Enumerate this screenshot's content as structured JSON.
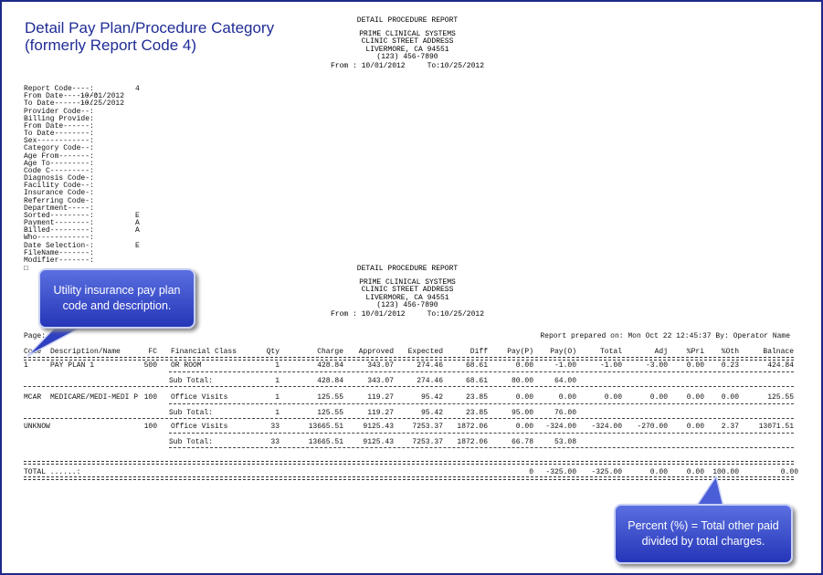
{
  "title": [
    "Detail Pay Plan/Procedure Category",
    "(formerly Report Code 4)"
  ],
  "header": [
    "DETAIL PROCEDURE REPORT",
    "PRIME CLINICAL SYSTEMS",
    "CLINIC STREET ADDRESS",
    "LIVERMORE, CA 94551",
    "(123) 456-7890",
    "From : 10/01/2012     To:10/25/2012"
  ],
  "parameters": [
    {
      "label": "Report Code----:",
      "value": "4"
    },
    {
      "label": "From Date-------:",
      "value": "10/01/2012"
    },
    {
      "label": "To Date--------:",
      "value": "10/25/2012"
    },
    {
      "label": "Provider Code--:"
    },
    {
      "label": "Billing Provide:"
    },
    {
      "label": "From Date------:"
    },
    {
      "label": "To Date--------:"
    },
    {
      "label": "Sex------------:"
    },
    {
      "label": "Category Code--:"
    },
    {
      "label": "Age From-------:"
    },
    {
      "label": "Age To---------:"
    },
    {
      "label": "Code C---------:"
    },
    {
      "label": "Diagnosis Code-:"
    },
    {
      "label": "Facility Code--:"
    },
    {
      "label": "Insurance Code-:"
    },
    {
      "label": "Referring Code-:"
    },
    {
      "label": "Department-----:"
    },
    {
      "label": "Sorted---------:",
      "value": "E"
    },
    {
      "label": "Payment--------:",
      "value": "A"
    },
    {
      "label": "Billed---------:",
      "value": "A"
    },
    {
      "label": "Who------------:"
    },
    {
      "label": "Date Selection-:",
      "value": "E"
    },
    {
      "label": "FileName-------:"
    },
    {
      "label": "Modifier-------:"
    }
  ],
  "page_label": "Page:",
  "prepared": "Report prepared on: Mon Oct 22 12:45:37 By: Operator Name",
  "table": {
    "columns": [
      "Code",
      "Description/Name",
      "FC",
      "Financial Class",
      "Qty",
      "Charge",
      "Approved",
      "Expected",
      "Diff",
      "Pay(P)",
      "Pay(O)",
      "Total",
      "Adj",
      "%Pri",
      "%Oth",
      "Balnace"
    ],
    "groups": [
      {
        "row": [
          "1",
          "PAY PLAN 1",
          "500",
          "OR ROOM",
          "1",
          "428.84",
          "343.07",
          "274.46",
          "68.61",
          "0.00",
          "-1.00",
          "-1.00",
          "-3.00",
          "0.00",
          "0.23",
          "424.84"
        ],
        "subtotal": {
          "label": "Sub Total:",
          "values": [
            "1",
            "428.84",
            "343.07",
            "274.46",
            "68.61",
            "80.00",
            "64.00"
          ]
        }
      },
      {
        "row": [
          "MCAR",
          "MEDICARE/MEDI-MEDI P",
          "100",
          "Office Visits",
          "1",
          "125.55",
          "119.27",
          "95.42",
          "23.85",
          "0.00",
          "0.00",
          "0.00",
          "0.00",
          "0.00",
          "0.00",
          "125.55"
        ],
        "subtotal": {
          "label": "Sub Total:",
          "values": [
            "1",
            "125.55",
            "119.27",
            "95.42",
            "23.85",
            "95.00",
            "76.00"
          ]
        }
      },
      {
        "row": [
          "UNKNOW",
          null,
          "100",
          "Office Visits",
          "33",
          "13665.51",
          "9125.43",
          "7253.37",
          "1872.06",
          "0.00",
          "-324.00",
          "-324.00",
          "-270.00",
          "0.00",
          "2.37",
          "13071.51"
        ],
        "subtotal": {
          "label": "Sub Total:",
          "values": [
            "33",
            "13665.51",
            "9125.43",
            "7253.37",
            "1872.06",
            "66.78",
            "53.08"
          ]
        }
      }
    ],
    "total": {
      "label": "TOTAL ......:",
      "values": [
        "0",
        "-325.00",
        "-325.00",
        "0.00",
        "0.00",
        "100.00",
        "0.00"
      ]
    }
  },
  "callouts": [
    "Utility insurance pay plan code and description.",
    "Percent (%) = Total other paid divided by total charges."
  ]
}
